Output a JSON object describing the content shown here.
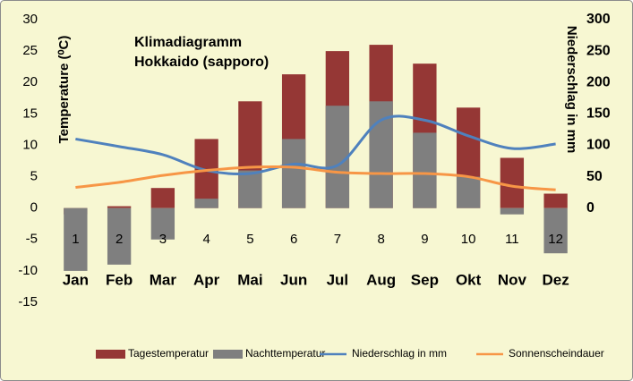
{
  "chart_data": {
    "type": "bar-line",
    "title": "Klimadiagramm",
    "subtitle": "Hokkaido (sapporo)",
    "y_label": "Temperature (⁰C)",
    "y2_label": "Niederschlag in mm",
    "categories": [
      "Jan",
      "Feb",
      "Mar",
      "Apr",
      "Mai",
      "Jun",
      "Jul",
      "Aug",
      "Sep",
      "Okt",
      "Nov",
      "Dez"
    ],
    "category_numbers": [
      "1",
      "2",
      "3",
      "4",
      "5",
      "6",
      "7",
      "8",
      "9",
      "10",
      "11",
      "12"
    ],
    "series": [
      {
        "name": "Tagestemperatur",
        "type": "bar",
        "color": "#953735",
        "values": [
          -1,
          0.3,
          3.2,
          11,
          17,
          21.3,
          25,
          26,
          23,
          16,
          8,
          2.3
        ]
      },
      {
        "name": "Nachttemperatur",
        "type": "bar",
        "color": "#7f7f7f",
        "values": [
          -10,
          -9,
          -5,
          1.5,
          6,
          11,
          16.3,
          17,
          12,
          5,
          -1,
          -7.2
        ]
      },
      {
        "name": "Niederschlag in mm",
        "type": "line",
        "axis": "y2",
        "color": "#4f81bd",
        "values": [
          110,
          98,
          85,
          60,
          55,
          70,
          68,
          140,
          140,
          115,
          95,
          102
        ]
      },
      {
        "name": "Sonnenscheindauer",
        "type": "line",
        "axis": "y2",
        "color": "#f79646",
        "values": [
          33,
          41,
          52,
          60,
          65,
          65,
          57,
          55,
          55,
          50,
          35,
          29
        ]
      }
    ],
    "ylim": [
      -15,
      30
    ],
    "yticks": [
      -15,
      -10,
      -5,
      0,
      5,
      10,
      15,
      20,
      25,
      30
    ],
    "y2lim": [
      -150,
      300
    ],
    "y2ticks": [
      0,
      50,
      100,
      150,
      200,
      250,
      300
    ],
    "grid": false,
    "legend": "bottom"
  }
}
